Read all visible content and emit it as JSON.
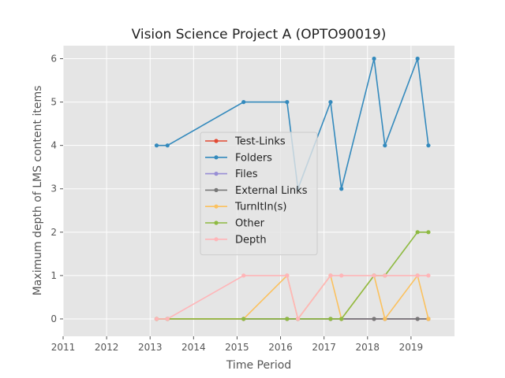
{
  "chart_data": {
    "type": "line",
    "title": "Vision Science Project A (OPTO90019)",
    "xlabel": "Time Period",
    "ylabel": "Maximum depth of LMS content items",
    "xlim": [
      2011,
      2020
    ],
    "ylim": [
      -0.4,
      6.3
    ],
    "x_ticks": [
      2011,
      2012,
      2013,
      2014,
      2015,
      2016,
      2017,
      2018,
      2019
    ],
    "y_ticks": [
      0,
      1,
      2,
      3,
      4,
      5,
      6
    ],
    "grid": true,
    "legend_position": "center",
    "x": [
      2013.15,
      2013.4,
      2015.15,
      2016.15,
      2016.4,
      2017.15,
      2017.4,
      2018.15,
      2018.4,
      2019.15,
      2019.4
    ],
    "series": [
      {
        "name": "Test-Links",
        "color": "#e24a33",
        "values": [
          0,
          0,
          0,
          0,
          0,
          0,
          0,
          0,
          0,
          0,
          0
        ]
      },
      {
        "name": "Folders",
        "color": "#348abd",
        "values": [
          4,
          4,
          5,
          5,
          3,
          5,
          3,
          6,
          4,
          6,
          4
        ]
      },
      {
        "name": "Files",
        "color": "#988ed5",
        "values": [
          0,
          0,
          0,
          0,
          0,
          0,
          0,
          0,
          0,
          0,
          0
        ]
      },
      {
        "name": "External Links",
        "color": "#777777",
        "values": [
          0,
          0,
          0,
          0,
          0,
          0,
          0,
          0,
          0,
          0,
          0
        ]
      },
      {
        "name": "TurnItIn(s)",
        "color": "#fbc15e",
        "values": [
          0,
          0,
          0,
          1,
          0,
          1,
          0,
          1,
          0,
          1,
          0
        ]
      },
      {
        "name": "Other",
        "color": "#8eba42",
        "values": [
          0,
          0,
          0,
          0,
          0,
          0,
          0,
          1,
          1,
          2,
          2
        ]
      },
      {
        "name": "Depth",
        "color": "#ffb5b8",
        "values": [
          0,
          0,
          1,
          1,
          0,
          1,
          1,
          1,
          1,
          1,
          1
        ]
      }
    ]
  }
}
